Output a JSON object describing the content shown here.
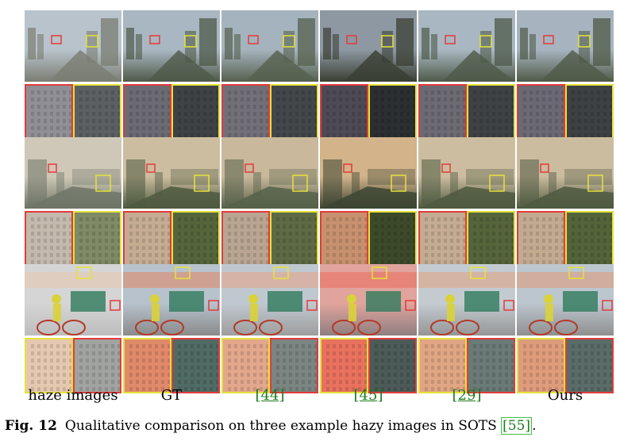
{
  "figure": {
    "column_labels": [
      {
        "text": "haze images",
        "cite": false
      },
      {
        "text": "GT",
        "cite": false
      },
      {
        "text": "[44]",
        "cite": true
      },
      {
        "text": "[45]",
        "cite": true
      },
      {
        "text": "[29]",
        "cite": true
      },
      {
        "text": "Ours",
        "cite": false
      }
    ],
    "rows": [
      {
        "scene": "city-buildings-hazy-daylight",
        "sky": [
          "#b9c3cc",
          "#a9b7c2",
          "#a5b3be",
          "#8e98a2",
          "#a9b7c2",
          "#a7b4c0"
        ],
        "ground": [
          "#7a7d72",
          "#4e5a48",
          "#55604d",
          "#3a3f33",
          "#4e5a48",
          "#4f5a47"
        ],
        "crop_left": [
          "#8f8f95",
          "#6c6a74",
          "#726f78",
          "#4d4a55",
          "#6c6a74",
          "#6b6973"
        ],
        "crop_right": [
          "#5d6063",
          "#3e4245",
          "#43474a",
          "#2c2f31",
          "#3e4245",
          "#3d4144"
        ]
      },
      {
        "scene": "city-skyline-sunset-haze",
        "sky": [
          "#cfc8b8",
          "#cdbda0",
          "#c9b89b",
          "#d2b38a",
          "#cdbda0",
          "#ccbc9f"
        ],
        "ground": [
          "#6f7567",
          "#4d5940",
          "#56614a",
          "#3c4533",
          "#4d5940",
          "#4e5941"
        ],
        "crop_left": [
          "#c3b9ac",
          "#c4ab92",
          "#b9a591",
          "#c7916f",
          "#c4ab92",
          "#c2aa91"
        ],
        "crop_right": [
          "#7f8a66",
          "#55653b",
          "#5d6a45",
          "#3c4a2a",
          "#55653b",
          "#54643a"
        ]
      },
      {
        "scene": "street-scene-people-bicycles",
        "sky": [
          "#d5d5d5",
          "#b7c2cc",
          "#c0c8cf",
          "#e0a49c",
          "#c3cbd1",
          "#bcc6ce"
        ],
        "ground": [
          "#bdbdbd",
          "#8a8a8a",
          "#9d9d9d",
          "#8e7f80",
          "#959595",
          "#8f8f8f"
        ],
        "crop_left": [
          "#e6c8b0",
          "#e08a6a",
          "#e3a78c",
          "#e9725f",
          "#e0a684",
          "#de9c7c"
        ],
        "crop_right": [
          "#a0a3a0",
          "#506a64",
          "#7b8582",
          "#4c5b57",
          "#6a7a76",
          "#5a6c67"
        ]
      }
    ]
  },
  "caption": {
    "fig_label": "Fig. 12",
    "text_before": "Qualitative comparison on three example hazy images in SOTS ",
    "ref": "[55]",
    "text_after": "."
  }
}
